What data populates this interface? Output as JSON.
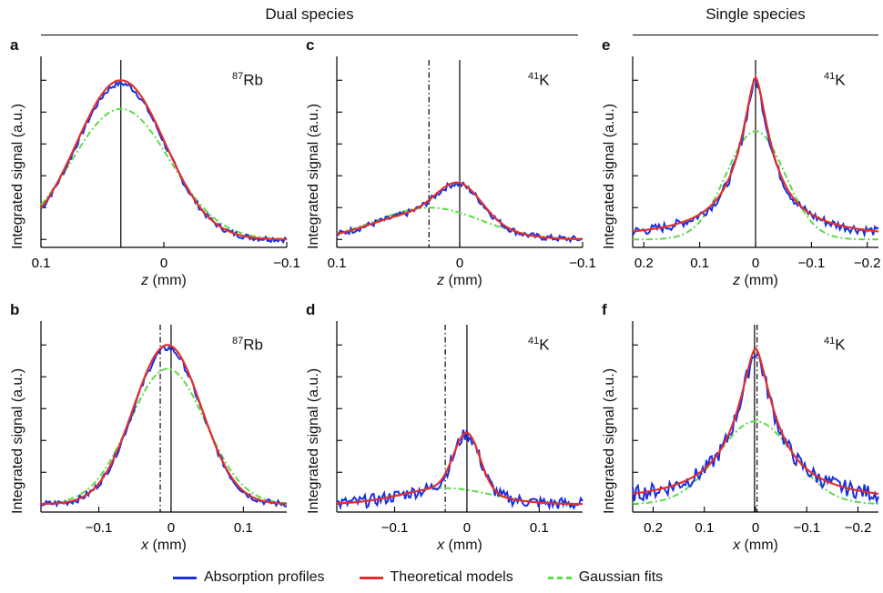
{
  "headers": {
    "dual": "Dual species",
    "single": "Single species"
  },
  "legend": [
    {
      "label": "Absorption profiles",
      "color": "#1a2fe0",
      "style": "solid"
    },
    {
      "label": "Theoretical models",
      "color": "#e0312e",
      "style": "solid"
    },
    {
      "label": "Gaussian fits",
      "color": "#5ed94a",
      "style": "dashdot"
    }
  ],
  "chart_data": [
    {
      "id": "a",
      "type": "line",
      "species_sup": "87",
      "species": "Rb",
      "ylabel": "Integrated signal (a.u.)",
      "xlabel_var": "z",
      "xlabel_unit": " (mm)",
      "xlim": [
        0.1,
        -0.1
      ],
      "xticks": [
        0.1,
        0,
        -0.1
      ],
      "xticklabels": [
        "0.1",
        "0",
        "−0.1"
      ],
      "ylim": [
        -0.05,
        1.15
      ],
      "yticks": [
        0,
        0.2,
        0.4,
        0.6,
        0.8,
        1.0
      ],
      "vlines": [
        {
          "x": 0.035,
          "style": "solid"
        }
      ],
      "center": 0.035,
      "gauss_amp": 0.82,
      "gauss_sigma": 0.038,
      "model_amp": 1.0,
      "model_sigma": 0.036,
      "model_shape": "gauss",
      "blue_amp": 0.98,
      "blue_sigma": 0.037,
      "noise": 0.018
    },
    {
      "id": "c",
      "type": "line",
      "species_sup": "41",
      "species": "K",
      "ylabel": "Integrated signal (a.u.)",
      "xlabel_var": "z",
      "xlabel_unit": " (mm)",
      "xlim": [
        0.1,
        -0.1
      ],
      "xticks": [
        0.1,
        0,
        -0.1
      ],
      "xticklabels": [
        "0.1",
        "0",
        "−0.1"
      ],
      "ylim": [
        -0.05,
        1.15
      ],
      "yticks": [
        0,
        0.2,
        0.4,
        0.6,
        0.8,
        1.0
      ],
      "vlines": [
        {
          "x": 0.025,
          "style": "dashdot"
        },
        {
          "x": 0.0,
          "style": "solid"
        }
      ],
      "center": 0.025,
      "gauss_amp": 0.2,
      "gauss_sigma": 0.04,
      "model_amp": 0.35,
      "model_sigma": 0.035,
      "model_shape": "twocomp",
      "blue_amp": 0.33,
      "blue_sigma": 0.034,
      "noise": 0.02
    },
    {
      "id": "e",
      "type": "line",
      "species_sup": "41",
      "species": "K",
      "ylabel": "Integrated signal (a.u.)",
      "xlabel_var": "z",
      "xlabel_unit": " (mm)",
      "xlim": [
        0.22,
        -0.22
      ],
      "xticks": [
        0.2,
        0.1,
        0,
        -0.1,
        -0.2
      ],
      "xticklabels": [
        "0.2",
        "0.1",
        "0",
        "−0.1",
        "−0.2"
      ],
      "ylim": [
        -0.05,
        1.15
      ],
      "yticks": [
        0,
        0.2,
        0.4,
        0.6,
        0.8,
        1.0
      ],
      "vlines": [
        {
          "x": 0.0,
          "style": "solid"
        }
      ],
      "center": 0.0,
      "gauss_amp": 0.68,
      "gauss_sigma": 0.05,
      "model_amp": 1.02,
      "model_sigma": 0.045,
      "model_shape": "peaked",
      "blue_amp": 1.0,
      "blue_sigma": 0.045,
      "noise": 0.03
    },
    {
      "id": "b",
      "type": "line",
      "species_sup": "87",
      "species": "Rb",
      "ylabel": "Integrated signal (a.u.)",
      "xlabel_var": "x",
      "xlabel_unit": " (mm)",
      "xlim": [
        -0.18,
        0.16
      ],
      "xticks": [
        -0.1,
        0,
        0.1
      ],
      "xticklabels": [
        "−0.1",
        "0",
        "0.1"
      ],
      "ylim": [
        -0.05,
        1.15
      ],
      "yticks": [
        0,
        0.2,
        0.4,
        0.6,
        0.8,
        1.0
      ],
      "vlines": [
        {
          "x": -0.015,
          "style": "dashdot"
        },
        {
          "x": 0.0,
          "style": "solid"
        }
      ],
      "center": -0.005,
      "gauss_amp": 0.85,
      "gauss_sigma": 0.05,
      "model_amp": 1.0,
      "model_sigma": 0.047,
      "model_shape": "gauss",
      "blue_amp": 0.97,
      "blue_sigma": 0.049,
      "noise": 0.02
    },
    {
      "id": "d",
      "type": "line",
      "species_sup": "41",
      "species": "K",
      "ylabel": "Integrated signal (a.u.)",
      "xlabel_var": "x",
      "xlabel_unit": " (mm)",
      "xlim": [
        -0.18,
        0.16
      ],
      "xticks": [
        -0.1,
        0,
        0.1
      ],
      "xticklabels": [
        "−0.1",
        "0",
        "0.1"
      ],
      "ylim": [
        -0.05,
        1.15
      ],
      "yticks": [
        0,
        0.2,
        0.4,
        0.6,
        0.8,
        1.0
      ],
      "vlines": [
        {
          "x": -0.03,
          "style": "dashdot"
        },
        {
          "x": 0.0,
          "style": "solid"
        }
      ],
      "center": -0.03,
      "gauss_amp": 0.1,
      "gauss_sigma": 0.06,
      "model_amp": 0.45,
      "model_sigma": 0.018,
      "model_shape": "narrowpeak",
      "blue_amp": 0.45,
      "blue_sigma": 0.02,
      "noise": 0.04
    },
    {
      "id": "f",
      "type": "line",
      "species_sup": "41",
      "species": "K",
      "ylabel": "Integrated signal (a.u.)",
      "xlabel_var": "x",
      "xlabel_unit": " (mm)",
      "xlim": [
        0.24,
        -0.24
      ],
      "xticks": [
        0.2,
        0.1,
        0,
        -0.1,
        -0.2
      ],
      "xticklabels": [
        "0.2",
        "0.1",
        "0",
        "−0.1",
        "−0.2"
      ],
      "ylim": [
        -0.05,
        1.15
      ],
      "yticks": [
        0,
        0.2,
        0.4,
        0.6,
        0.8,
        1.0
      ],
      "vlines": [
        {
          "x": 0.002,
          "style": "solid"
        },
        {
          "x": -0.003,
          "style": "dashdot"
        }
      ],
      "center": 0.0,
      "gauss_amp": 0.52,
      "gauss_sigma": 0.07,
      "model_amp": 0.98,
      "model_sigma": 0.06,
      "model_shape": "peaked",
      "blue_amp": 0.95,
      "blue_sigma": 0.062,
      "noise": 0.05
    }
  ]
}
